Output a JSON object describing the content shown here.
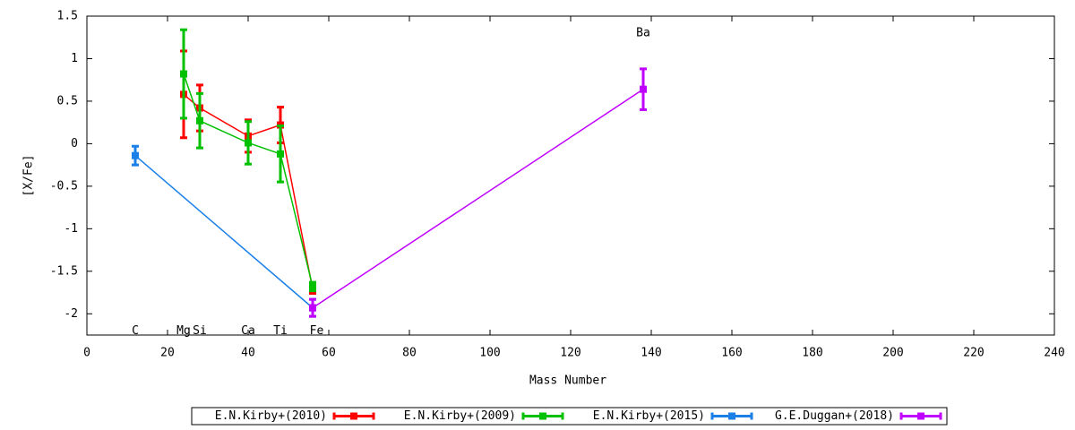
{
  "chart_data": {
    "type": "errorbar-line",
    "x_label": "Mass Number",
    "y_label": "[X/Fe]",
    "xlim": [
      0,
      240
    ],
    "xticks": [
      0,
      20,
      40,
      60,
      80,
      100,
      120,
      140,
      160,
      180,
      200,
      220,
      240
    ],
    "ylim": [
      -2.25,
      1.5
    ],
    "yticks": [
      -2,
      -1.5,
      -1,
      -0.5,
      0,
      0.5,
      1,
      1.5
    ],
    "legend": "bottom",
    "series": [
      {
        "name": "E.N.Kirby+(2010)",
        "color": "#ff0000",
        "x": [
          24,
          28,
          40,
          48,
          56
        ],
        "values": [
          0.58,
          0.42,
          0.09,
          0.22,
          -1.71
        ],
        "errors": [
          0.51,
          0.27,
          0.19,
          0.21,
          0.05
        ]
      },
      {
        "name": "E.N.Kirby+(2009)",
        "color": "#00c000",
        "x": [
          24,
          28,
          40,
          48,
          56
        ],
        "values": [
          0.82,
          0.27,
          0.01,
          -0.12,
          -1.68
        ],
        "errors": [
          0.52,
          0.32,
          0.25,
          0.33,
          0.05
        ]
      },
      {
        "name": "E.N.Kirby+(2015)",
        "color": "#1a80e8",
        "x": [
          12,
          56
        ],
        "values": [
          -0.14,
          -1.93
        ],
        "errors": [
          0.11,
          0.1
        ]
      },
      {
        "name": "G.E.Duggan+(2018)",
        "color": "#c000ff",
        "x": [
          56,
          138
        ],
        "values": [
          -1.93,
          0.64
        ],
        "errors": [
          0.1,
          0.24
        ]
      }
    ],
    "annotations": [
      {
        "text": "C",
        "x": 12,
        "y": -2.2
      },
      {
        "text": "Mg",
        "x": 24,
        "y": -2.2
      },
      {
        "text": "Si",
        "x": 28,
        "y": -2.2
      },
      {
        "text": "Ca",
        "x": 40,
        "y": -2.2
      },
      {
        "text": "Ti",
        "x": 48,
        "y": -2.2
      },
      {
        "text": "Fe",
        "x": 57,
        "y": -2.2
      },
      {
        "text": "Ba",
        "x": 138,
        "y": 1.3
      }
    ]
  }
}
